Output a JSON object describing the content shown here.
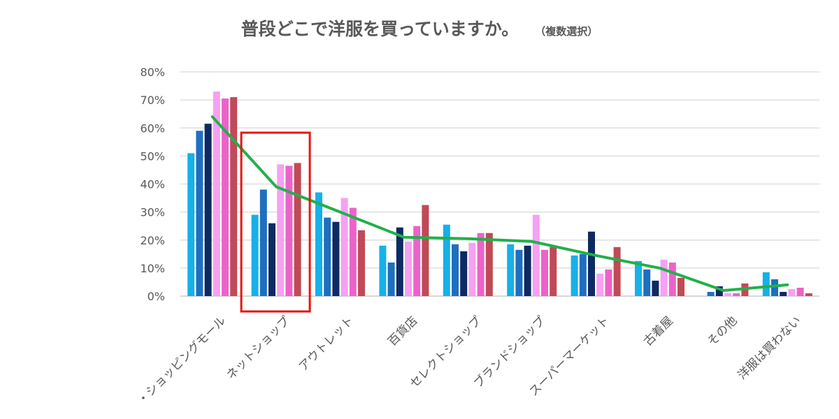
{
  "chart_data": {
    "type": "bar",
    "title": "普段どこで洋服を買っていますか。",
    "subtitle": "（複数選択）",
    "ytick_labels": [
      "0%",
      "10%",
      "20%",
      "30%",
      "40%",
      "50%",
      "60%",
      "70%",
      "80%"
    ],
    "ylim": [
      0,
      80
    ],
    "grid": true,
    "categories": [
      "・ショッピングモール",
      "ネットショップ",
      "アウトレット",
      "百貨店",
      "セレクトショップ",
      "ブランドショップ",
      "スーパーマーケット",
      "古着屋",
      "その他",
      "洋服は買わない"
    ],
    "series": [
      {
        "color": "#17b0e8",
        "values": [
          51,
          29,
          37,
          18,
          25.5,
          18.5,
          14.5,
          12.5,
          0,
          8.5
        ]
      },
      {
        "color": "#1f6fbf",
        "values": [
          59,
          38,
          28,
          12,
          18.5,
          16.5,
          15,
          9.5,
          1.5,
          6
        ]
      },
      {
        "color": "#0d2a62",
        "values": [
          61.5,
          26,
          26.5,
          24.5,
          16,
          18,
          23,
          5.5,
          3.5,
          1.5
        ]
      },
      {
        "color": "#f6a1f2",
        "values": [
          73,
          47,
          35,
          19.5,
          19,
          29,
          8,
          13,
          1,
          2.5
        ]
      },
      {
        "color": "#ec63c8",
        "values": [
          70.5,
          46.5,
          31.5,
          25,
          22.5,
          16.5,
          9.5,
          12,
          1,
          3
        ]
      },
      {
        "color": "#c04a56",
        "values": [
          71,
          47.5,
          23.5,
          32.5,
          22.5,
          17.5,
          17.5,
          6.5,
          4.5,
          1
        ]
      }
    ],
    "line": {
      "color": "#21b04b",
      "values": [
        64,
        39,
        30,
        21,
        20.5,
        19.5,
        14.5,
        10,
        2,
        4
      ]
    },
    "highlight_category_index": 1,
    "highlight_color": "#e8140f"
  }
}
